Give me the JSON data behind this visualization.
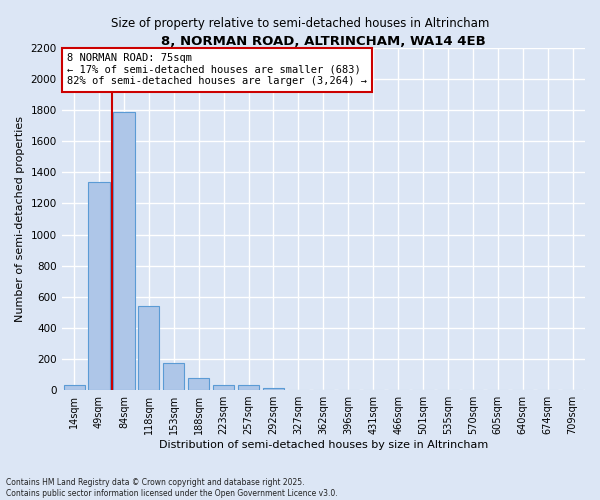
{
  "title": "8, NORMAN ROAD, ALTRINCHAM, WA14 4EB",
  "subtitle": "Size of property relative to semi-detached houses in Altrincham",
  "xlabel": "Distribution of semi-detached houses by size in Altrincham",
  "ylabel": "Number of semi-detached properties",
  "footnote1": "Contains HM Land Registry data © Crown copyright and database right 2025.",
  "footnote2": "Contains public sector information licensed under the Open Government Licence v3.0.",
  "bar_labels": [
    "14sqm",
    "49sqm",
    "84sqm",
    "118sqm",
    "153sqm",
    "188sqm",
    "223sqm",
    "257sqm",
    "292sqm",
    "327sqm",
    "362sqm",
    "396sqm",
    "431sqm",
    "466sqm",
    "501sqm",
    "535sqm",
    "570sqm",
    "605sqm",
    "640sqm",
    "674sqm",
    "709sqm"
  ],
  "bar_values": [
    30,
    1340,
    1790,
    540,
    175,
    80,
    35,
    30,
    15,
    0,
    0,
    0,
    0,
    0,
    0,
    0,
    0,
    0,
    0,
    0,
    0
  ],
  "bar_color": "#aec6e8",
  "bar_edge_color": "#5b9bd5",
  "ylim": [
    0,
    2200
  ],
  "yticks": [
    0,
    200,
    400,
    600,
    800,
    1000,
    1200,
    1400,
    1600,
    1800,
    2000,
    2200
  ],
  "property_line_color": "#cc0000",
  "annotation_line": "8 NORMAN ROAD: 75sqm",
  "annotation_line2": "← 17% of semi-detached houses are smaller (683)",
  "annotation_line3": "82% of semi-detached houses are larger (3,264) →",
  "bg_color": "#dce6f5",
  "grid_color": "#ffffff",
  "bar_width": 0.85
}
